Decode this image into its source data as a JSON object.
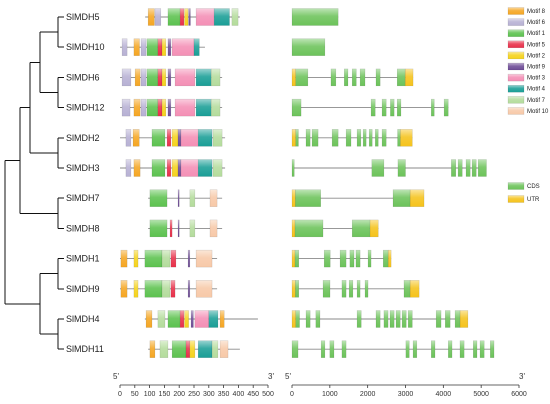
{
  "legend": {
    "motifs": [
      {
        "id": 8,
        "label": "Motif 8",
        "color": "#F5A623"
      },
      {
        "id": 6,
        "label": "Motif 6",
        "color": "#B7B1D4"
      },
      {
        "id": 1,
        "label": "Motif 1",
        "color": "#5CC24F"
      },
      {
        "id": 5,
        "label": "Motif 5",
        "color": "#E8304A"
      },
      {
        "id": 2,
        "label": "Motif 2",
        "color": "#F5D31D"
      },
      {
        "id": 9,
        "label": "Motif 9",
        "color": "#6E4C96"
      },
      {
        "id": 3,
        "label": "Motif 3",
        "color": "#F48FB5"
      },
      {
        "id": 4,
        "label": "Motif 4",
        "color": "#1A9E96"
      },
      {
        "id": 7,
        "label": "Motif 7",
        "color": "#B4DC9C"
      },
      {
        "id": 10,
        "label": "Motif 10",
        "color": "#F7C9A8"
      }
    ],
    "cds": {
      "label": "CDS",
      "color": "#6CC35A"
    },
    "utr": {
      "label": "UTR",
      "color": "#F5C31C"
    }
  },
  "tree": [
    [
      [
        [
          [
            0,
            1
          ],
          [
            2,
            3
          ]
        ],
        [
          4,
          5
        ]
      ],
      [
        6,
        7
      ]
    ],
    [
      [
        8,
        9
      ],
      [
        10,
        11
      ]
    ]
  ],
  "genes": [
    {
      "name": "SlMDH5",
      "protein": [
        85,
        405
      ],
      "motifs": [
        [
          8,
          95,
          116
        ],
        [
          6,
          118,
          138
        ],
        [
          1,
          162,
          203
        ],
        [
          5,
          203,
          216
        ],
        [
          2,
          218,
          230
        ],
        [
          9,
          232,
          238
        ],
        [
          3,
          257,
          318
        ],
        [
          4,
          318,
          370
        ],
        [
          7,
          378,
          399
        ]
      ],
      "structure": {
        "length": 1220,
        "utr": [],
        "cds": [
          [
            0,
            1220
          ]
        ]
      }
    },
    {
      "name": "SlMDH10",
      "protein": [
        0,
        287
      ],
      "motifs": [
        [
          6,
          7,
          24
        ],
        [
          8,
          47,
          66
        ],
        [
          6,
          71,
          88
        ],
        [
          1,
          91,
          128
        ],
        [
          5,
          128,
          142
        ],
        [
          2,
          142,
          155
        ],
        [
          9,
          162,
          172
        ],
        [
          3,
          176,
          250
        ],
        [
          4,
          250,
          268
        ]
      ],
      "structure": {
        "length": 870,
        "utr": [],
        "cds": [
          [
            0,
            870
          ]
        ]
      }
    },
    {
      "name": "SlMDH6",
      "protein": [
        0,
        345
      ],
      "motifs": [
        [
          6,
          7,
          37
        ],
        [
          8,
          51,
          68
        ],
        [
          6,
          71,
          88
        ],
        [
          1,
          91,
          128
        ],
        [
          5,
          128,
          142
        ],
        [
          2,
          142,
          155
        ],
        [
          9,
          162,
          172
        ],
        [
          3,
          186,
          253
        ],
        [
          4,
          257,
          308
        ],
        [
          7,
          308,
          338
        ]
      ],
      "structure": {
        "length": 3200,
        "utr": [
          [
            0,
            100
          ],
          [
            2990,
            3200
          ]
        ],
        "cds": [
          [
            100,
            420
          ],
          [
            1030,
            1160
          ],
          [
            1380,
            1480
          ],
          [
            1590,
            1700
          ],
          [
            1800,
            1930
          ],
          [
            2220,
            2330
          ],
          [
            2780,
            2990
          ]
        ]
      }
    },
    {
      "name": "SlMDH12",
      "protein": [
        0,
        345
      ],
      "motifs": [
        [
          6,
          7,
          34
        ],
        [
          8,
          47,
          68
        ],
        [
          6,
          71,
          88
        ],
        [
          1,
          91,
          128
        ],
        [
          5,
          128,
          142
        ],
        [
          2,
          142,
          155
        ],
        [
          9,
          162,
          172
        ],
        [
          3,
          186,
          253
        ],
        [
          4,
          257,
          308
        ],
        [
          7,
          308,
          338
        ]
      ],
      "structure": {
        "length": 4130,
        "utr": [],
        "cds": [
          [
            0,
            240
          ],
          [
            2090,
            2200
          ],
          [
            2380,
            2490
          ],
          [
            2600,
            2700
          ],
          [
            2780,
            2880
          ],
          [
            3680,
            3760
          ],
          [
            4020,
            4130
          ]
        ]
      }
    },
    {
      "name": "SlMDH2",
      "protein": [
        0,
        355
      ],
      "motifs": [
        [
          6,
          20,
          37
        ],
        [
          8,
          44,
          65
        ],
        [
          1,
          108,
          152
        ],
        [
          5,
          159,
          172
        ],
        [
          2,
          176,
          196
        ],
        [
          9,
          196,
          206
        ],
        [
          3,
          206,
          264
        ],
        [
          4,
          264,
          311
        ],
        [
          7,
          314,
          345
        ]
      ],
      "structure": {
        "length": 3180,
        "utr": [
          [
            0,
            100
          ],
          [
            2860,
            3180
          ]
        ],
        "cds": [
          [
            100,
            170
          ],
          [
            370,
            480
          ],
          [
            530,
            690
          ],
          [
            1060,
            1220
          ],
          [
            1430,
            1560
          ],
          [
            1720,
            1820
          ],
          [
            1880,
            1960
          ],
          [
            2040,
            2120
          ],
          [
            2200,
            2280
          ],
          [
            2380,
            2490
          ],
          [
            2790,
            2860
          ]
        ]
      }
    },
    {
      "name": "SlMDH3",
      "protein": [
        0,
        355
      ],
      "motifs": [
        [
          6,
          20,
          37
        ],
        [
          8,
          47,
          68
        ],
        [
          1,
          108,
          152
        ],
        [
          5,
          159,
          172
        ],
        [
          2,
          176,
          196
        ],
        [
          9,
          196,
          206
        ],
        [
          3,
          206,
          264
        ],
        [
          4,
          264,
          311
        ],
        [
          7,
          314,
          345
        ]
      ],
      "structure": {
        "length": 5140,
        "utr": [],
        "cds": [
          [
            0,
            60
          ],
          [
            2110,
            2430
          ],
          [
            2800,
            3000
          ],
          [
            4210,
            4330
          ],
          [
            4390,
            4500
          ],
          [
            4600,
            4710
          ],
          [
            4760,
            4870
          ],
          [
            4920,
            5140
          ]
        ]
      }
    },
    {
      "name": "SlMDH7",
      "protein": [
        95,
        345
      ],
      "motifs": [
        [
          1,
          101,
          159
        ],
        [
          9,
          196,
          200
        ],
        [
          7,
          236,
          253
        ],
        [
          10,
          304,
          328
        ]
      ],
      "structure": {
        "length": 3490,
        "utr": [
          [
            0,
            90
          ],
          [
            3120,
            3490
          ]
        ],
        "cds": [
          [
            90,
            760
          ],
          [
            2670,
            3120
          ]
        ]
      }
    },
    {
      "name": "SlMDH8",
      "protein": [
        95,
        345
      ],
      "motifs": [
        [
          1,
          101,
          159
        ],
        [
          5,
          169,
          176
        ],
        [
          9,
          196,
          200
        ],
        [
          7,
          236,
          253
        ],
        [
          10,
          304,
          328
        ]
      ],
      "structure": {
        "length": 2280,
        "utr": [
          [
            0,
            80
          ],
          [
            2060,
            2280
          ]
        ],
        "cds": [
          [
            80,
            820
          ],
          [
            1590,
            2060
          ]
        ]
      }
    },
    {
      "name": "SlMDH1",
      "protein": [
        0,
        328
      ],
      "motifs": [
        [
          8,
          3,
          24
        ],
        [
          2,
          47,
          61
        ],
        [
          1,
          84,
          142
        ],
        [
          7,
          142,
          169
        ],
        [
          5,
          172,
          189
        ],
        [
          9,
          230,
          236
        ],
        [
          10,
          257,
          311
        ]
      ],
      "structure": {
        "length": 2620,
        "utr": [
          [
            0,
            80
          ],
          [
            2540,
            2620
          ]
        ],
        "cds": [
          [
            80,
            180
          ],
          [
            850,
            1010
          ],
          [
            1270,
            1430
          ],
          [
            1530,
            1640
          ],
          [
            1690,
            1800
          ],
          [
            2010,
            2090
          ],
          [
            2410,
            2540
          ]
        ]
      }
    },
    {
      "name": "SlMDH9",
      "protein": [
        0,
        328
      ],
      "motifs": [
        [
          8,
          3,
          24
        ],
        [
          2,
          47,
          61
        ],
        [
          1,
          84,
          142
        ],
        [
          7,
          142,
          169
        ],
        [
          5,
          172,
          186
        ],
        [
          9,
          230,
          236
        ],
        [
          10,
          257,
          311
        ]
      ],
      "structure": {
        "length": 3360,
        "utr": [
          [
            0,
            90
          ],
          [
            3120,
            3360
          ]
        ],
        "cds": [
          [
            90,
            180
          ],
          [
            820,
            1005
          ],
          [
            1320,
            1430
          ],
          [
            1510,
            1610
          ],
          [
            1720,
            1800
          ],
          [
            1930,
            2010
          ],
          [
            2960,
            3120
          ]
        ]
      }
    },
    {
      "name": "SlMDH4",
      "protein": [
        84,
        466
      ],
      "motifs": [
        [
          8,
          88,
          108
        ],
        [
          7,
          128,
          152
        ],
        [
          1,
          162,
          203
        ],
        [
          5,
          203,
          216
        ],
        [
          2,
          218,
          232
        ],
        [
          9,
          240,
          248
        ],
        [
          3,
          253,
          300
        ],
        [
          4,
          300,
          331
        ],
        [
          8,
          338,
          352
        ]
      ],
      "structure": {
        "length": 4650,
        "utr": [
          [
            0,
            100
          ],
          [
            4440,
            4650
          ]
        ],
        "cds": [
          [
            100,
            200
          ],
          [
            370,
            480
          ],
          [
            630,
            740
          ],
          [
            1720,
            1830
          ],
          [
            2220,
            2330
          ],
          [
            2430,
            2540
          ],
          [
            2590,
            2700
          ],
          [
            2750,
            2860
          ],
          [
            2910,
            3020
          ],
          [
            3070,
            3180
          ],
          [
            3810,
            3940
          ],
          [
            4050,
            4180
          ],
          [
            4310,
            4440
          ]
        ]
      }
    },
    {
      "name": "SlMDH11",
      "protein": [
        95,
        405
      ],
      "motifs": [
        [
          8,
          101,
          118
        ],
        [
          7,
          135,
          162
        ],
        [
          1,
          176,
          223
        ],
        [
          5,
          223,
          236
        ],
        [
          2,
          236,
          253
        ],
        [
          4,
          264,
          311
        ],
        [
          7,
          311,
          331
        ],
        [
          10,
          338,
          365
        ]
      ],
      "structure": {
        "length": 5340,
        "utr": [],
        "cds": [
          [
            0,
            160
          ],
          [
            770,
            870
          ],
          [
            1000,
            1110
          ],
          [
            1320,
            1430
          ],
          [
            3010,
            3100
          ],
          [
            3200,
            3300
          ],
          [
            3680,
            3780
          ],
          [
            4130,
            4230
          ],
          [
            4440,
            4550
          ],
          [
            4790,
            4890
          ],
          [
            4970,
            5080
          ],
          [
            5240,
            5340
          ]
        ]
      }
    }
  ],
  "motif_axis": {
    "end5": "5'",
    "end3": "3'",
    "max": 500,
    "ticks": [
      0,
      50,
      100,
      150,
      200,
      250,
      300,
      350,
      400,
      450,
      500
    ]
  },
  "gene_axis": {
    "end5": "5'",
    "end3": "3'",
    "max": 6000,
    "ticks": [
      0,
      1000,
      2000,
      3000,
      4000,
      5000,
      6000
    ]
  }
}
